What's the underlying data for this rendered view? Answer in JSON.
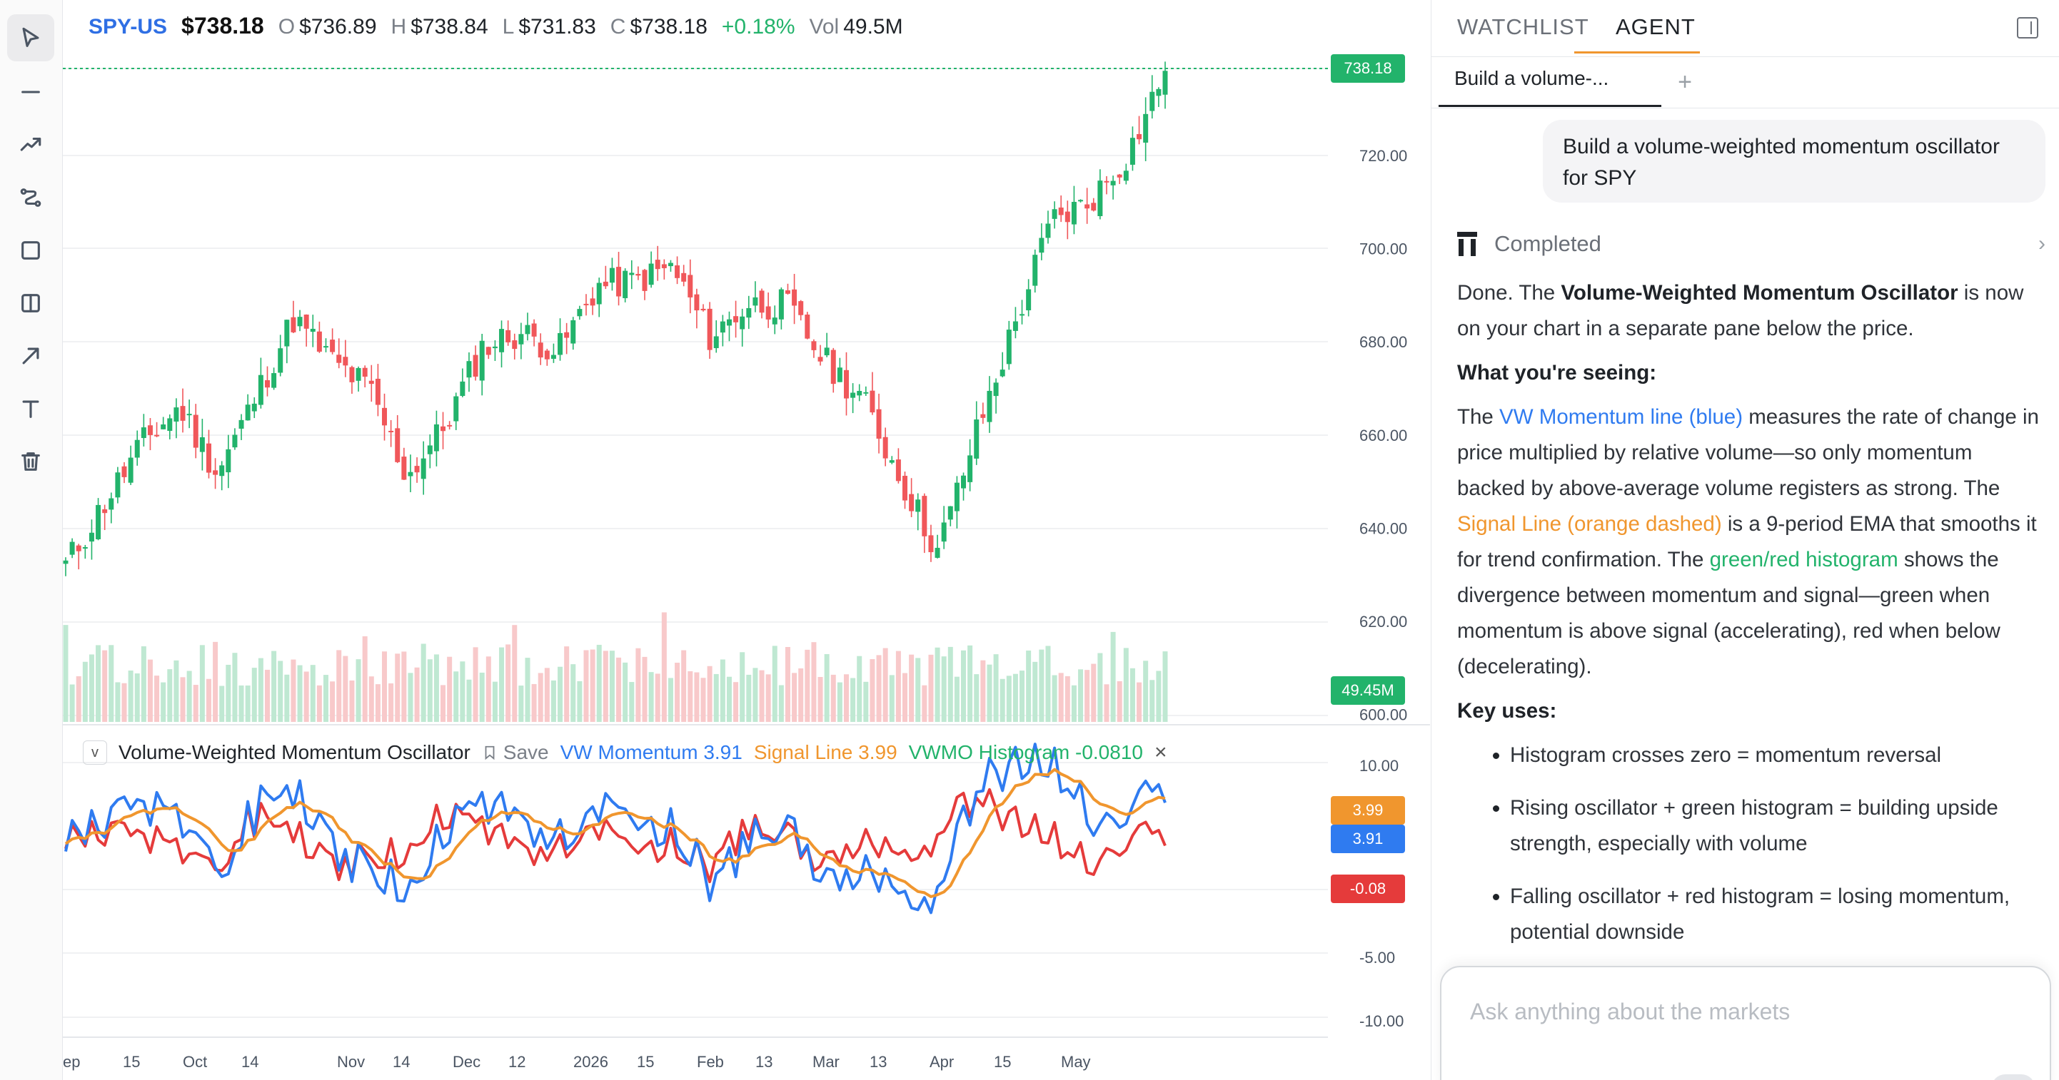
{
  "toolbar": {
    "tools": [
      "cursor-icon",
      "horizontal-line-icon",
      "trend-line-icon",
      "path-icon",
      "rectangle-icon",
      "split-pane-icon",
      "arrow-icon",
      "text-icon",
      "trash-icon"
    ]
  },
  "header": {
    "symbol": "SPY-US",
    "last": "$738.18",
    "open_label": "O",
    "open": "$736.89",
    "high_label": "H",
    "high": "$738.84",
    "low_label": "L",
    "low": "$731.83",
    "close_label": "C",
    "close": "$738.18",
    "change": "+0.18%",
    "vol_label": "Vol",
    "volume": "49.5M"
  },
  "price_axis": {
    "ticks": [
      "720.00",
      "700.00",
      "680.00",
      "660.00",
      "640.00",
      "620.00",
      "600.00"
    ],
    "last_tag": "738.18",
    "volume_tag": "49.45M"
  },
  "indicator": {
    "collapse": "v",
    "name": "Volume-Weighted Momentum Oscillator",
    "save": "Save",
    "vw_label": "VW Momentum 3.91",
    "signal_label": "Signal Line 3.99",
    "hist_label": "VWMO Histogram -0.0810",
    "close": "×",
    "axis_ticks": [
      "10.00",
      "-5.00",
      "-10.00"
    ],
    "signal_tag": "3.99",
    "vw_tag": "3.91",
    "hist_tag": "-0.08"
  },
  "time_axis": {
    "labels": [
      "ep",
      "15",
      "Oct",
      "14",
      "Nov",
      "14",
      "Dec",
      "12",
      "2026",
      "15",
      "Feb",
      "13",
      "Mar",
      "13",
      "Apr",
      "15",
      "May"
    ]
  },
  "colors": {
    "up": "#22b36b",
    "down": "#f0575a",
    "vw": "#2f7bf0",
    "signal": "#f0962e",
    "hist": "#e53b3b",
    "accent": "#f0962e"
  },
  "chart_data": {
    "type": "candlestick",
    "symbol": "SPY-US",
    "x_range": [
      "Sep 2025",
      "May 2026"
    ],
    "ylim": [
      600,
      740
    ],
    "last_price": 738.18,
    "close_path": [
      {
        "date": "Sep 8",
        "close": 632
      },
      {
        "date": "Sep 15",
        "close": 645
      },
      {
        "date": "Sep 22",
        "close": 658
      },
      {
        "date": "Oct 1",
        "close": 666
      },
      {
        "date": "Oct 10",
        "close": 652
      },
      {
        "date": "Oct 14",
        "close": 668
      },
      {
        "date": "Oct 22",
        "close": 685
      },
      {
        "date": "Oct 29",
        "close": 676
      },
      {
        "date": "Nov 7",
        "close": 670
      },
      {
        "date": "Nov 14",
        "close": 651
      },
      {
        "date": "Nov 21",
        "close": 662
      },
      {
        "date": "Dec 1",
        "close": 679
      },
      {
        "date": "Dec 12",
        "close": 682
      },
      {
        "date": "Dec 22",
        "close": 678
      },
      {
        "date": "2026-01-02",
        "close": 692
      },
      {
        "date": "Jan 15",
        "close": 693
      },
      {
        "date": "Jan 27",
        "close": 696
      },
      {
        "date": "Feb 5",
        "close": 681
      },
      {
        "date": "Feb 13",
        "close": 688
      },
      {
        "date": "Feb 24",
        "close": 688
      },
      {
        "date": "Mar 5",
        "close": 676
      },
      {
        "date": "Mar 13",
        "close": 668
      },
      {
        "date": "Mar 20",
        "close": 651
      },
      {
        "date": "Mar 27",
        "close": 635
      },
      {
        "date": "Apr 2",
        "close": 660
      },
      {
        "date": "Apr 9",
        "close": 683
      },
      {
        "date": "Apr 15",
        "close": 706
      },
      {
        "date": "Apr 24",
        "close": 710
      },
      {
        "date": "May 1",
        "close": 720
      },
      {
        "date": "May 8",
        "close": 738
      }
    ],
    "indicator": {
      "name": "Volume-Weighted Momentum Oscillator",
      "ylim": [
        -12,
        12
      ],
      "series": [
        {
          "name": "VW Momentum",
          "last": 3.91,
          "color": "#2f7bf0"
        },
        {
          "name": "Signal Line",
          "last": 3.99,
          "color": "#f0962e"
        },
        {
          "name": "VWMO Histogram",
          "last": -0.081,
          "color": "#e53b3b"
        }
      ]
    }
  },
  "panel": {
    "tabs": [
      "WATCHLIST",
      "AGENT"
    ],
    "active_tab": "AGENT",
    "chat_tab": "Build a volume-...",
    "add_tab": "+",
    "user_message": "Build a volume-weighted momentum oscillator for SPY",
    "status": "Completed",
    "answer": {
      "p1_a": "Done. The ",
      "p1_b": "Volume-Weighted Momentum Oscillator",
      "p1_c": " is now on your chart in a separate pane below the price.",
      "h1": "What you're seeing:",
      "p2_a": "The ",
      "p2_b": "VW Momentum line (blue)",
      "p2_c": " measures the rate of change in price multiplied by relative volume—so only momentum backed by above-average volume registers as strong. The ",
      "p2_d": "Signal Line (orange dashed)",
      "p2_e": " is a 9-period EMA that smooths it for trend confirmation. The ",
      "p2_f": "green/red histogram",
      "p2_g": " shows the divergence between momentum and signal—green when momentum is above signal (accelerating), red when below (decelerating).",
      "h2": "Key uses:",
      "bullets": [
        "Histogram crosses zero = momentum reversal",
        "Rising oscillator + green histogram = building upside strength, especially with volume",
        "Falling oscillator + red histogram = losing momentum, potential downside"
      ]
    },
    "ask_placeholder": "Ask anything about the markets"
  }
}
